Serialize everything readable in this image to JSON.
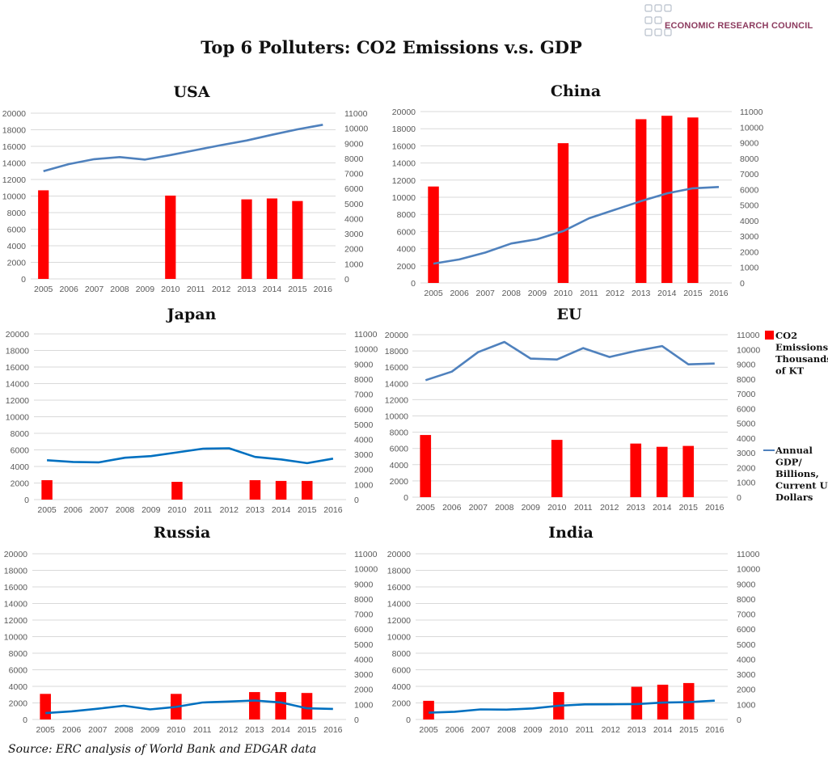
{
  "title": "Top 6 Polluters: CO2 Emissions v.s. GDP",
  "logo": {
    "text": "ECONOMIC RESEARCH COUNCIL",
    "color": "#8c3a5e"
  },
  "source": "Source: ERC analysis of World Bank and EDGAR data",
  "legend": {
    "co2": {
      "lines": [
        "CO2",
        "Emissions/",
        "Thousands",
        "of KT"
      ],
      "color": "#ff0000"
    },
    "gdp": {
      "lines": [
        "Annual",
        "GDP/",
        "Billions,",
        "Current US",
        "Dollars"
      ],
      "color": "#4f81bd"
    }
  },
  "chart_data": [
    {
      "type": "bar+line",
      "title": "USA",
      "categories": [
        "2005",
        "2006",
        "2007",
        "2008",
        "2009",
        "2010",
        "2011",
        "2012",
        "2013",
        "2014",
        "2015",
        "2016"
      ],
      "ylim_left": [
        0,
        20000
      ],
      "yticks_left": [
        "0",
        "2000",
        "4000",
        "6000",
        "8000",
        "10000",
        "12000",
        "14000",
        "16000",
        "18000",
        "20000"
      ],
      "ylim_right": [
        0,
        11000
      ],
      "yticks_right": [
        "0",
        "1000",
        "2000",
        "3000",
        "4000",
        "5000",
        "6000",
        "7000",
        "8000",
        "9000",
        "10000",
        "11000"
      ],
      "grid": true,
      "line_color": "#4f81bd",
      "gdp_left_axis": [
        13000,
        13850,
        14450,
        14700,
        14400,
        14950,
        15550,
        16150,
        16700,
        17400,
        18050,
        18600
      ],
      "co2_right_axis": [
        5880,
        null,
        null,
        null,
        null,
        5530,
        null,
        null,
        5280,
        5340,
        5170,
        null
      ]
    },
    {
      "type": "bar+line",
      "title": "China",
      "categories": [
        "2005",
        "2006",
        "2007",
        "2008",
        "2009",
        "2010",
        "2011",
        "2012",
        "2013",
        "2014",
        "2015",
        "2016"
      ],
      "ylim_left": [
        0,
        20000
      ],
      "yticks_left": [
        "0",
        "2000",
        "4000",
        "6000",
        "8000",
        "10000",
        "12000",
        "14000",
        "16000",
        "18000",
        "20000"
      ],
      "ylim_right": [
        0,
        11000
      ],
      "yticks_right": [
        "0",
        "1000",
        "2000",
        "3000",
        "4000",
        "5000",
        "6000",
        "7000",
        "8000",
        "9000",
        "10000",
        "11000"
      ],
      "grid": true,
      "line_color": "#4f81bd",
      "gdp_left_axis": [
        2250,
        2750,
        3550,
        4600,
        5100,
        6050,
        7550,
        8550,
        9550,
        10450,
        11050,
        11200
      ],
      "co2_right_axis": [
        6190,
        null,
        null,
        null,
        null,
        8970,
        null,
        null,
        10510,
        10730,
        10620,
        null
      ]
    },
    {
      "type": "bar+line",
      "title": "Japan",
      "categories": [
        "2005",
        "2006",
        "2007",
        "2008",
        "2009",
        "2010",
        "2011",
        "2012",
        "2013",
        "2014",
        "2015",
        "2016"
      ],
      "ylim_left": [
        0,
        20000
      ],
      "yticks_left": [
        "0",
        "2000",
        "4000",
        "6000",
        "8000",
        "10000",
        "12000",
        "14000",
        "16000",
        "18000",
        "20000"
      ],
      "ylim_right": [
        0,
        11000
      ],
      "yticks_right": [
        "0",
        "1000",
        "2000",
        "3000",
        "4000",
        "5000",
        "6000",
        "7000",
        "8000",
        "9000",
        "10000",
        "11000"
      ],
      "grid": true,
      "line_color": "#0070c0",
      "gdp_left_axis": [
        4750,
        4550,
        4500,
        5050,
        5250,
        5700,
        6150,
        6200,
        5150,
        4850,
        4400,
        4950
      ],
      "co2_right_axis": [
        1290,
        null,
        null,
        null,
        null,
        1180,
        null,
        null,
        1290,
        1240,
        1240,
        null
      ]
    },
    {
      "type": "bar+line",
      "title": "EU",
      "categories": [
        "2005",
        "2006",
        "2007",
        "2008",
        "2009",
        "2010",
        "2011",
        "2012",
        "2013",
        "2014",
        "2015",
        "2016"
      ],
      "ylim_left": [
        0,
        20000
      ],
      "yticks_left": [
        "0",
        "2000",
        "4000",
        "6000",
        "8000",
        "10000",
        "12000",
        "14000",
        "16000",
        "18000",
        "20000"
      ],
      "ylim_right": [
        0,
        11000
      ],
      "yticks_right": [
        "0",
        "1000",
        "2000",
        "3000",
        "4000",
        "5000",
        "6000",
        "7000",
        "8000",
        "9000",
        "10000",
        "11000"
      ],
      "grid": true,
      "line_color": "#4f81bd",
      "legend": "right",
      "gdp_left_axis": [
        14400,
        15450,
        17850,
        19100,
        17050,
        16950,
        18350,
        17250,
        18000,
        18600,
        16350,
        16450
      ],
      "co2_right_axis": [
        4210,
        null,
        null,
        null,
        null,
        3880,
        null,
        null,
        3630,
        3410,
        3470,
        null
      ]
    },
    {
      "type": "bar+line",
      "title": "Russia",
      "categories": [
        "2005",
        "2006",
        "2007",
        "2008",
        "2009",
        "2010",
        "2011",
        "2012",
        "2013",
        "2014",
        "2015",
        "2016"
      ],
      "ylim_left": [
        0,
        20000
      ],
      "yticks_left": [
        "0",
        "2000",
        "4000",
        "6000",
        "8000",
        "10000",
        "12000",
        "14000",
        "16000",
        "18000",
        "20000"
      ],
      "ylim_right": [
        0,
        11000
      ],
      "yticks_right": [
        "0",
        "1000",
        "2000",
        "3000",
        "4000",
        "5000",
        "6000",
        "7000",
        "8000",
        "9000",
        "10000",
        "11000"
      ],
      "grid": true,
      "line_color": "#0070c0",
      "gdp_left_axis": [
        770,
        990,
        1300,
        1660,
        1220,
        1520,
        2050,
        2170,
        2290,
        2060,
        1360,
        1280
      ],
      "co2_right_axis": [
        1700,
        null,
        null,
        null,
        null,
        1700,
        null,
        null,
        1820,
        1820,
        1760,
        null
      ]
    },
    {
      "type": "bar+line",
      "title": "India",
      "categories": [
        "2005",
        "2006",
        "2007",
        "2008",
        "2009",
        "2010",
        "2011",
        "2012",
        "2013",
        "2014",
        "2015",
        "2016"
      ],
      "ylim_left": [
        0,
        20000
      ],
      "yticks_left": [
        "0",
        "2000",
        "4000",
        "6000",
        "8000",
        "10000",
        "12000",
        "14000",
        "16000",
        "18000",
        "20000"
      ],
      "ylim_right": [
        0,
        11000
      ],
      "yticks_right": [
        "0",
        "1000",
        "2000",
        "3000",
        "4000",
        "5000",
        "6000",
        "7000",
        "8000",
        "9000",
        "10000",
        "11000"
      ],
      "grid": true,
      "line_color": "#0070c0",
      "gdp_left_axis": [
        820,
        940,
        1220,
        1190,
        1340,
        1660,
        1820,
        1830,
        1860,
        2040,
        2100,
        2270
      ],
      "co2_right_axis": [
        1240,
        null,
        null,
        null,
        null,
        1820,
        null,
        null,
        2170,
        2310,
        2420,
        null
      ]
    }
  ]
}
